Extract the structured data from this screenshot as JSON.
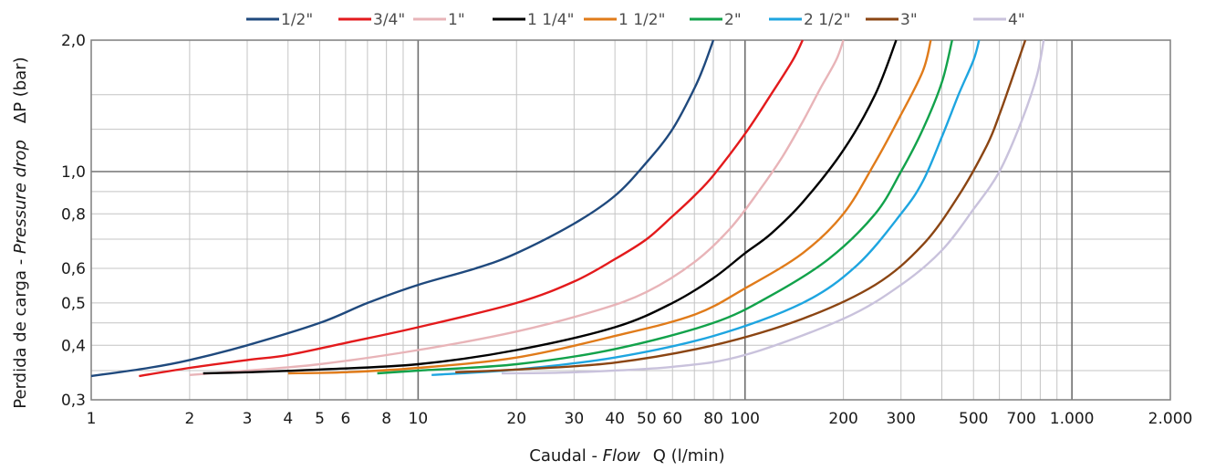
{
  "chart_data": {
    "type": "line",
    "x_scale": "log",
    "y_scale": "log",
    "xlim": [
      1,
      2000
    ],
    "ylim": [
      0.3,
      2.0
    ],
    "xlabel": {
      "prefix": "Caudal - ",
      "italic": "Flow",
      "suffix": "Q (l/min)"
    },
    "ylabel": {
      "prefix": "Perdida de carga - ",
      "italic": "Pressure drop",
      "suffix": "ΔP (bar)"
    },
    "x_tick_labels": [
      {
        "v": 1,
        "label": "1"
      },
      {
        "v": 2,
        "label": "2"
      },
      {
        "v": 3,
        "label": "3"
      },
      {
        "v": 4,
        "label": "4"
      },
      {
        "v": 5,
        "label": "5"
      },
      {
        "v": 6,
        "label": "6"
      },
      {
        "v": 8,
        "label": "8"
      },
      {
        "v": 10,
        "label": "10"
      },
      {
        "v": 20,
        "label": "20"
      },
      {
        "v": 30,
        "label": "30"
      },
      {
        "v": 40,
        "label": "40"
      },
      {
        "v": 50,
        "label": "50"
      },
      {
        "v": 60,
        "label": "60"
      },
      {
        "v": 80,
        "label": "80"
      },
      {
        "v": 100,
        "label": "100"
      },
      {
        "v": 200,
        "label": "200"
      },
      {
        "v": 300,
        "label": "300"
      },
      {
        "v": 500,
        "label": "500"
      },
      {
        "v": 700,
        "label": "700"
      },
      {
        "v": 1000,
        "label": "1.000"
      },
      {
        "v": 2000,
        "label": "2.000"
      }
    ],
    "y_tick_labels": [
      {
        "v": 0.3,
        "label": "0,3"
      },
      {
        "v": 0.4,
        "label": "0,4"
      },
      {
        "v": 0.5,
        "label": "0,5"
      },
      {
        "v": 0.6,
        "label": "0,6"
      },
      {
        "v": 0.8,
        "label": "0,8"
      },
      {
        "v": 1.0,
        "label": "1,0"
      },
      {
        "v": 2.0,
        "label": "2,0"
      }
    ],
    "x_minor_grid": [
      2,
      3,
      4,
      5,
      6,
      7,
      8,
      9,
      20,
      30,
      40,
      50,
      60,
      70,
      80,
      90,
      200,
      300,
      400,
      500,
      600,
      700,
      800,
      900
    ],
    "x_major_grid": [
      10,
      100,
      1000
    ],
    "y_minor_grid": [
      0.35,
      0.4,
      0.45,
      0.5,
      0.6,
      0.7,
      0.8,
      0.9,
      1.25,
      1.5
    ],
    "y_major_grid": [
      1.0
    ],
    "grid": true,
    "legend_position": "top",
    "series": [
      {
        "name": "1/2\"",
        "color": "#1f497d",
        "points": [
          [
            1,
            0.34
          ],
          [
            1.5,
            0.355
          ],
          [
            2,
            0.37
          ],
          [
            3,
            0.4
          ],
          [
            5,
            0.45
          ],
          [
            7,
            0.5
          ],
          [
            10,
            0.55
          ],
          [
            15,
            0.6
          ],
          [
            20,
            0.65
          ],
          [
            30,
            0.76
          ],
          [
            40,
            0.88
          ],
          [
            50,
            1.05
          ],
          [
            60,
            1.25
          ],
          [
            70,
            1.55
          ],
          [
            75,
            1.75
          ],
          [
            80,
            2.0
          ]
        ]
      },
      {
        "name": "3/4\"",
        "color": "#e31a1c",
        "points": [
          [
            1.4,
            0.34
          ],
          [
            2,
            0.355
          ],
          [
            3,
            0.37
          ],
          [
            4,
            0.38
          ],
          [
            6,
            0.405
          ],
          [
            10,
            0.44
          ],
          [
            20,
            0.5
          ],
          [
            30,
            0.56
          ],
          [
            40,
            0.63
          ],
          [
            50,
            0.7
          ],
          [
            60,
            0.79
          ],
          [
            70,
            0.88
          ],
          [
            80,
            0.98
          ],
          [
            100,
            1.22
          ],
          [
            120,
            1.5
          ],
          [
            140,
            1.8
          ],
          [
            150,
            2.0
          ]
        ]
      },
      {
        "name": "1\"",
        "color": "#e8b4b8",
        "points": [
          [
            2,
            0.342
          ],
          [
            3,
            0.35
          ],
          [
            5,
            0.362
          ],
          [
            10,
            0.39
          ],
          [
            20,
            0.43
          ],
          [
            35,
            0.48
          ],
          [
            50,
            0.53
          ],
          [
            70,
            0.62
          ],
          [
            90,
            0.74
          ],
          [
            110,
            0.9
          ],
          [
            130,
            1.08
          ],
          [
            150,
            1.3
          ],
          [
            170,
            1.55
          ],
          [
            190,
            1.8
          ],
          [
            200,
            2.0
          ]
        ]
      },
      {
        "name": "1 1/4\"",
        "color": "#000000",
        "points": [
          [
            2.2,
            0.345
          ],
          [
            3,
            0.347
          ],
          [
            5,
            0.352
          ],
          [
            10,
            0.362
          ],
          [
            20,
            0.39
          ],
          [
            40,
            0.44
          ],
          [
            60,
            0.5
          ],
          [
            80,
            0.57
          ],
          [
            100,
            0.65
          ],
          [
            120,
            0.72
          ],
          [
            150,
            0.85
          ],
          [
            200,
            1.12
          ],
          [
            250,
            1.5
          ],
          [
            290,
            2.0
          ]
        ]
      },
      {
        "name": "1 1/2\"",
        "color": "#e07b1a",
        "points": [
          [
            4,
            0.345
          ],
          [
            6,
            0.347
          ],
          [
            10,
            0.355
          ],
          [
            20,
            0.375
          ],
          [
            40,
            0.42
          ],
          [
            70,
            0.47
          ],
          [
            100,
            0.54
          ],
          [
            150,
            0.65
          ],
          [
            200,
            0.8
          ],
          [
            250,
            1.05
          ],
          [
            300,
            1.35
          ],
          [
            350,
            1.7
          ],
          [
            370,
            2.0
          ]
        ]
      },
      {
        "name": "2\"",
        "color": "#12a24b",
        "points": [
          [
            7.5,
            0.345
          ],
          [
            10,
            0.35
          ],
          [
            20,
            0.362
          ],
          [
            40,
            0.392
          ],
          [
            80,
            0.45
          ],
          [
            120,
            0.52
          ],
          [
            180,
            0.63
          ],
          [
            250,
            0.8
          ],
          [
            300,
            1.0
          ],
          [
            350,
            1.25
          ],
          [
            400,
            1.6
          ],
          [
            430,
            2.0
          ]
        ]
      },
      {
        "name": "2 1/2\"",
        "color": "#1ea5e0",
        "points": [
          [
            11,
            0.342
          ],
          [
            20,
            0.352
          ],
          [
            40,
            0.375
          ],
          [
            80,
            0.42
          ],
          [
            150,
            0.5
          ],
          [
            220,
            0.61
          ],
          [
            300,
            0.8
          ],
          [
            350,
            0.95
          ],
          [
            400,
            1.2
          ],
          [
            450,
            1.5
          ],
          [
            500,
            1.8
          ],
          [
            520,
            2.0
          ]
        ]
      },
      {
        "name": "3\"",
        "color": "#8b4513",
        "points": [
          [
            13,
            0.347
          ],
          [
            20,
            0.352
          ],
          [
            40,
            0.365
          ],
          [
            80,
            0.4
          ],
          [
            150,
            0.46
          ],
          [
            250,
            0.55
          ],
          [
            350,
            0.68
          ],
          [
            450,
            0.88
          ],
          [
            550,
            1.15
          ],
          [
            600,
            1.35
          ],
          [
            650,
            1.6
          ],
          [
            720,
            2.0
          ]
        ]
      },
      {
        "name": "4\"",
        "color": "#c9c2dc",
        "points": [
          [
            18,
            0.345
          ],
          [
            30,
            0.347
          ],
          [
            60,
            0.357
          ],
          [
            100,
            0.38
          ],
          [
            200,
            0.46
          ],
          [
            300,
            0.55
          ],
          [
            400,
            0.66
          ],
          [
            500,
            0.82
          ],
          [
            600,
            1.0
          ],
          [
            700,
            1.3
          ],
          [
            780,
            1.65
          ],
          [
            820,
            2.0
          ]
        ]
      }
    ]
  }
}
